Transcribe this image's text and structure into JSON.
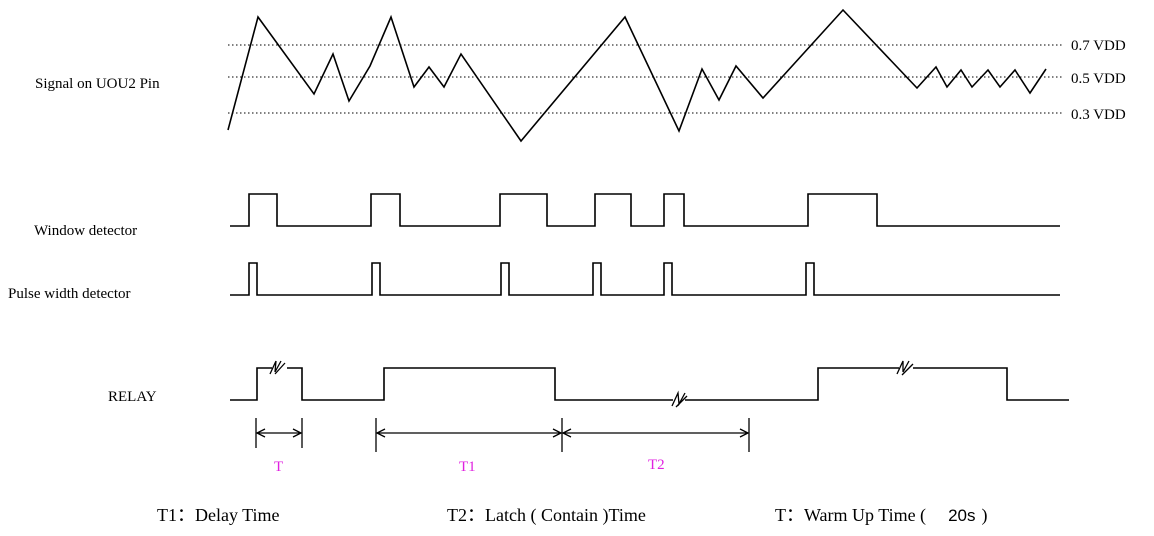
{
  "colors": {
    "line": "#000000",
    "period_label": "#e020e0"
  },
  "signal": {
    "label": "Signal on UOU2 Pin",
    "levels": [
      "0.7 VDD",
      "0.5 VDD",
      "0.3 VDD"
    ]
  },
  "rows": {
    "window": "Window detector",
    "pulse": "Pulse width detector",
    "relay": "RELAY"
  },
  "periods": {
    "t": "T",
    "t1": "T1",
    "t2": "T2"
  },
  "legend": {
    "t1": "T1：Delay Time",
    "t2": "T2：Latch ( Contain )Time",
    "t_prefix": "T：Warm Up Time (",
    "t_value": "20s",
    "t_suffix": ")"
  }
}
